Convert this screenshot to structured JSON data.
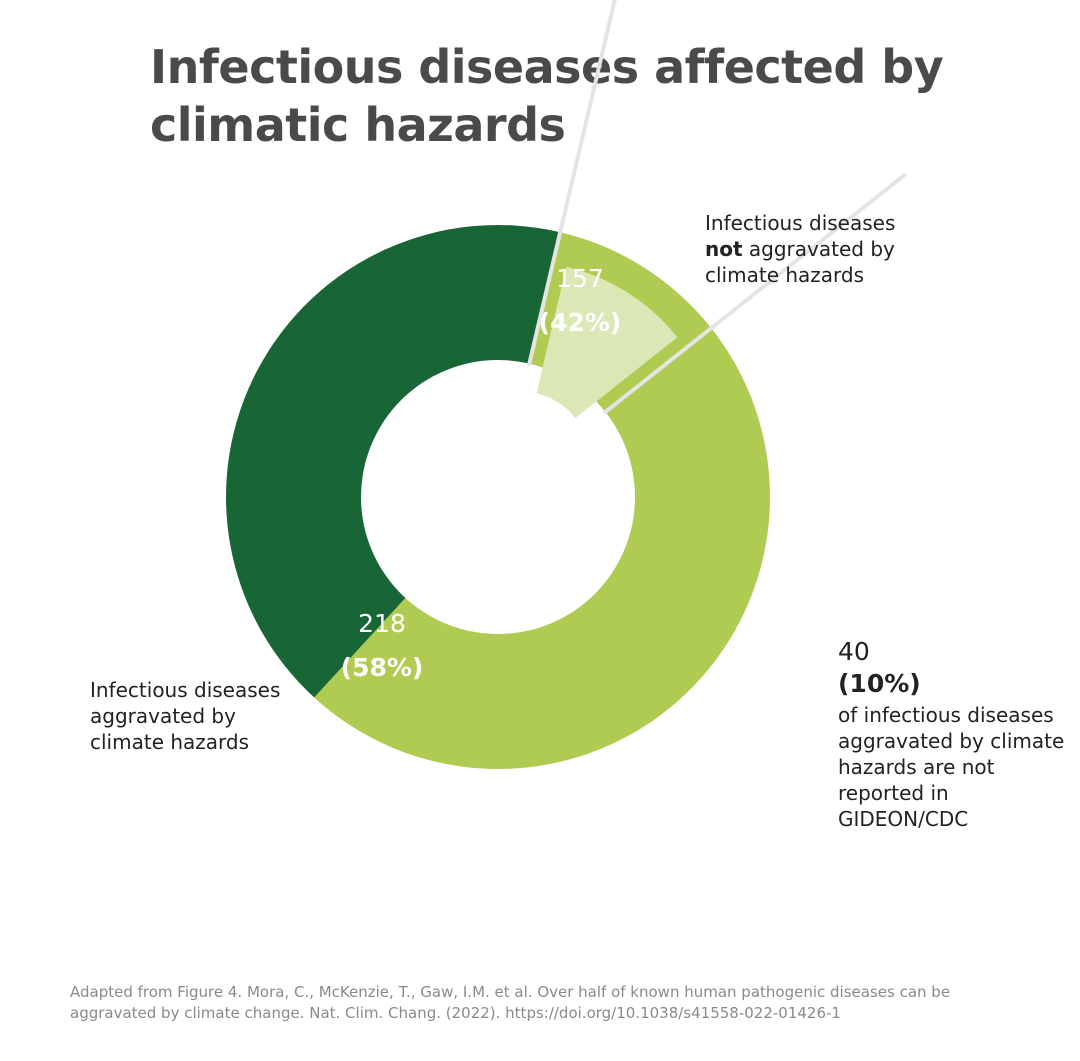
{
  "title": "Infectious diseases affected by climatic hazards",
  "colors": {
    "not_aggravated": "#186535",
    "aggravated": "#b0cb52",
    "not_reported": "#d9e8b5",
    "leader_line": "#e4e4e4",
    "title": "#4a4a4a",
    "source": "#8a8a8a"
  },
  "chart_data": {
    "type": "pie",
    "style": "donut-with-exploded-subslice",
    "slices": [
      {
        "key": "not_aggravated",
        "value": 157,
        "value_label": "157",
        "percent_label": "(42%)",
        "label_pre": "Infectious diseases",
        "label_bold": "not",
        "label_post": "aggravated by climate hazards"
      },
      {
        "key": "aggravated",
        "value": 218,
        "value_label": "218",
        "percent_label": "(58%)",
        "label": "Infectious diseases aggravated by climate hazards"
      }
    ],
    "subslice": {
      "parent": "aggravated",
      "value": 40,
      "value_label": "40",
      "percent_label": "(10%)",
      "label": "of infectious diseases aggravated by climate hazards are not reported in GIDEON/CDC"
    }
  },
  "source": "Adapted from Figure 4. Mora, C., McKenzie, T., Gaw, I.M. et al. Over half of known human pathogenic diseases can be aggravated by climate change. Nat. Clim. Chang. (2022). https://doi.org/10.1038/s41558-022-01426-1"
}
